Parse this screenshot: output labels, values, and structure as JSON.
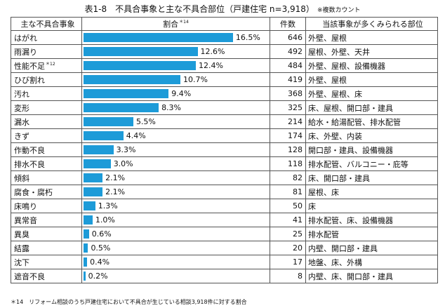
{
  "title": "表1-8　不具合事象と主な不具合部位（戸建住宅 n=3,918）",
  "title_note": "※複数カウント",
  "headers": {
    "event": "主な不具合事象",
    "ratio": "割合",
    "ratio_note": "＊14",
    "count": "件数",
    "sites": "当該事象が多くみられる部位"
  },
  "rows": [
    {
      "event": "はがれ",
      "pct_label": "16.5%",
      "count": "646",
      "sites": "外壁、屋根"
    },
    {
      "event": "雨漏り",
      "pct_label": "12.6%",
      "count": "492",
      "sites": "屋根、外壁、天井"
    },
    {
      "event": "性能不足",
      "event_note": "＊12",
      "pct_label": "12.4%",
      "count": "484",
      "sites": "外壁、屋根、設備機器"
    },
    {
      "event": "ひび割れ",
      "pct_label": "10.7%",
      "count": "419",
      "sites": "外壁、屋根"
    },
    {
      "event": "汚れ",
      "pct_label": "9.4%",
      "count": "368",
      "sites": "外壁、屋根、床"
    },
    {
      "event": "変形",
      "pct_label": "8.3%",
      "count": "325",
      "sites": "床、屋根、開口部・建具"
    },
    {
      "event": "漏水",
      "pct_label": "5.5%",
      "count": "214",
      "sites": "給水・給湯配管、排水配管"
    },
    {
      "event": "きず",
      "pct_label": "4.4%",
      "count": "174",
      "sites": "床、外壁、内装"
    },
    {
      "event": "作動不良",
      "pct_label": "3.3%",
      "count": "128",
      "sites": "開口部・建具、設備機器"
    },
    {
      "event": "排水不良",
      "pct_label": "3.0%",
      "count": "118",
      "sites": "排水配管、バルコニー・庇等"
    },
    {
      "event": "傾斜",
      "pct_label": "2.1%",
      "count": "82",
      "sites": "床、開口部・建具"
    },
    {
      "event": "腐食・腐朽",
      "pct_label": "2.1%",
      "count": "81",
      "sites": "屋根、床"
    },
    {
      "event": "床鳴り",
      "pct_label": "1.3%",
      "count": "50",
      "sites": "床"
    },
    {
      "event": "異常音",
      "pct_label": "1.0%",
      "count": "41",
      "sites": "排水配管、床、設備機器"
    },
    {
      "event": "異臭",
      "pct_label": "0.6%",
      "count": "25",
      "sites": "排水配管"
    },
    {
      "event": "結露",
      "pct_label": "0.5%",
      "count": "20",
      "sites": "内壁、開口部・建具"
    },
    {
      "event": "沈下",
      "pct_label": "0.4%",
      "count": "17",
      "sites": "地盤、床、外構"
    },
    {
      "event": "遮音不良",
      "pct_label": "0.2%",
      "count": "8",
      "sites": "内壁、床、開口部・建具"
    }
  ],
  "footnote": "＊14　リフォーム相談のうち戸建住宅において不具合が生じている相談3,918件に対する割合",
  "colors": {
    "bar": "#1d9bd8",
    "border": "#555555"
  },
  "chart_data": {
    "type": "bar",
    "orientation": "horizontal",
    "categories": [
      "はがれ",
      "雨漏り",
      "性能不足",
      "ひび割れ",
      "汚れ",
      "変形",
      "漏水",
      "きず",
      "作動不良",
      "排水不良",
      "傾斜",
      "腐食・腐朽",
      "床鳴り",
      "異常音",
      "異臭",
      "結露",
      "沈下",
      "遮音不良"
    ],
    "values": [
      16.5,
      12.6,
      12.4,
      10.7,
      9.4,
      8.3,
      5.5,
      4.4,
      3.3,
      3.0,
      2.1,
      2.1,
      1.3,
      1.0,
      0.6,
      0.5,
      0.4,
      0.2
    ],
    "unit": "%",
    "xlim": [
      0,
      20
    ]
  }
}
